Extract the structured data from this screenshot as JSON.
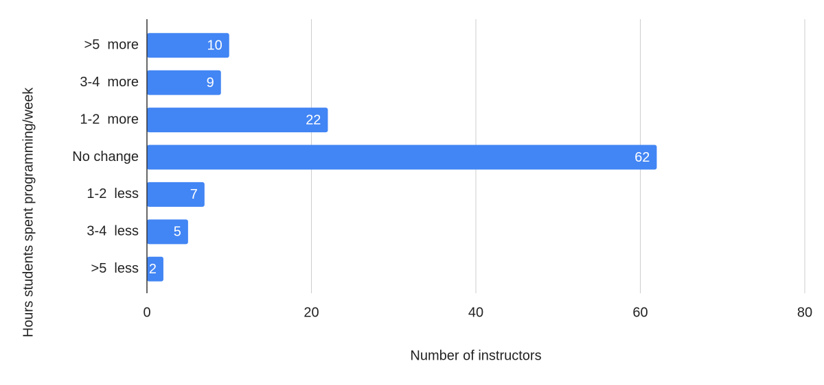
{
  "chart_data": {
    "type": "barh",
    "x_label": "Number of instructors",
    "y_label": "Hours students spent programming/week",
    "categories": [
      ">5  more",
      "3-4  more",
      "1-2  more",
      "No change",
      "1-2  less",
      "3-4  less",
      ">5  less"
    ],
    "values": [
      10,
      9,
      22,
      62,
      7,
      5,
      2
    ],
    "color": "#4285f4",
    "xlim": [
      0,
      80
    ],
    "xticks": [
      0,
      20,
      40,
      60,
      80
    ],
    "grid": true
  }
}
